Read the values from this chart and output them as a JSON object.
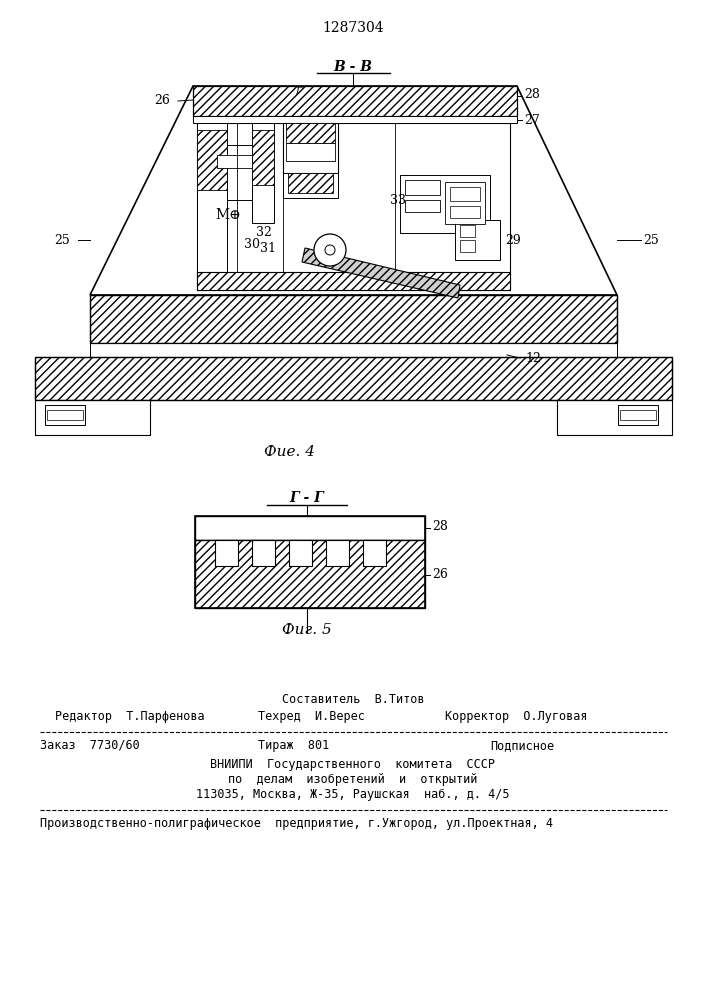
{
  "patent_number": "1287304",
  "fig4_caption": "Фие. 4",
  "fig5_caption": "Фиг. 5",
  "section_bb": "B - B",
  "section_gg": "Г - Г",
  "bg_color": "#ffffff",
  "lc": "#000000",
  "footer_line1_center": "Составитель  В.Титов",
  "footer_line2_left": "Редактор  Т.Парфенова",
  "footer_line2_mid": "Техред  И.Верес",
  "footer_line2_right": "Корректор  О.Луговая",
  "footer_line3_left": "Заказ  7730/60",
  "footer_line3_mid": "Тираж  801",
  "footer_line3_right": "Подписное",
  "footer_line4": "ВНИИПИ  Государственного  комитета  СССР",
  "footer_line5": "по  делам  изобретений  и  открытий",
  "footer_line6": "113035, Москва, Ж-35, Раушская  наб., д. 4/5",
  "footer_line7": "Производственно-полиграфическое  предприятие, г.Ужгород, ул.Проектная, 4"
}
